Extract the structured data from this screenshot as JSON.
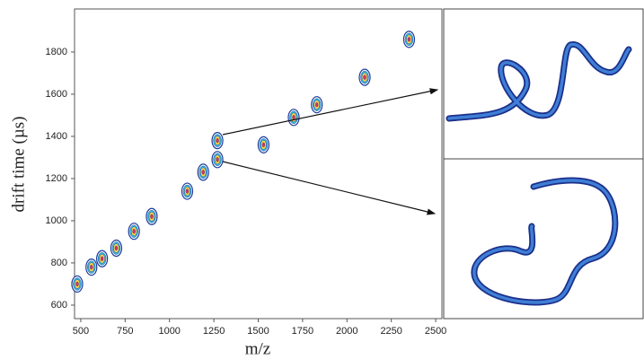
{
  "chart_data": {
    "type": "scatter",
    "x": [
      480,
      560,
      620,
      700,
      800,
      900,
      1100,
      1190,
      1270,
      1270,
      1530,
      1700,
      1830,
      2100,
      2350
    ],
    "values": [
      700,
      780,
      820,
      870,
      950,
      1020,
      1140,
      1230,
      1380,
      1290,
      1360,
      1490,
      1550,
      1680,
      1860
    ],
    "colors": [
      "#1a3a9a",
      "#33b5d6",
      "#ffd54a",
      "#e03060"
    ],
    "xlabel": "m/z",
    "ylabel": "drift time (µs)",
    "xlim": [
      465,
      2535
    ],
    "ylim": [
      536,
      2004
    ],
    "xticks": [
      500,
      750,
      1000,
      1250,
      1500,
      1750,
      2000,
      2250,
      2500
    ],
    "yticks": [
      600,
      800,
      1000,
      1200,
      1400,
      1600,
      1800
    ]
  }
}
